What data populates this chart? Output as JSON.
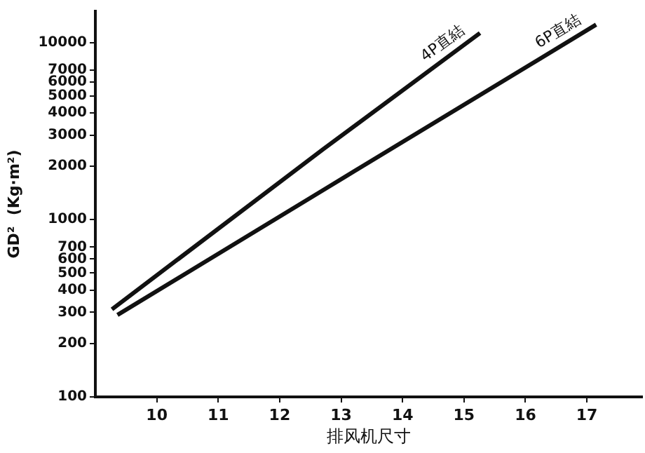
{
  "chart_data": {
    "type": "line",
    "xlabel": "排风机尺寸",
    "ylabel": "GD²  (Kg·m²)",
    "log": "y",
    "grid": false,
    "legend": false,
    "marker": "none",
    "line_style": "solid",
    "xlim": [
      9,
      17.9
    ],
    "xticks": [
      10,
      11,
      12,
      13,
      14,
      15,
      16,
      17
    ],
    "ylim": [
      100,
      15000
    ],
    "yticks": [
      100,
      200,
      300,
      400,
      500,
      600,
      700,
      1000,
      2000,
      3000,
      4000,
      5000,
      6000,
      7000,
      10000
    ],
    "series": [
      {
        "name": "4P直結",
        "color": "#111111",
        "x": [
          9.27,
          12.71,
          15.26
        ],
        "values": [
          312,
          2500,
          11300
        ]
      },
      {
        "name": "6P直結",
        "color": "#111111",
        "x": [
          9.36,
          12.71,
          17.15
        ],
        "values": [
          290,
          1470,
          12600
        ]
      }
    ]
  }
}
